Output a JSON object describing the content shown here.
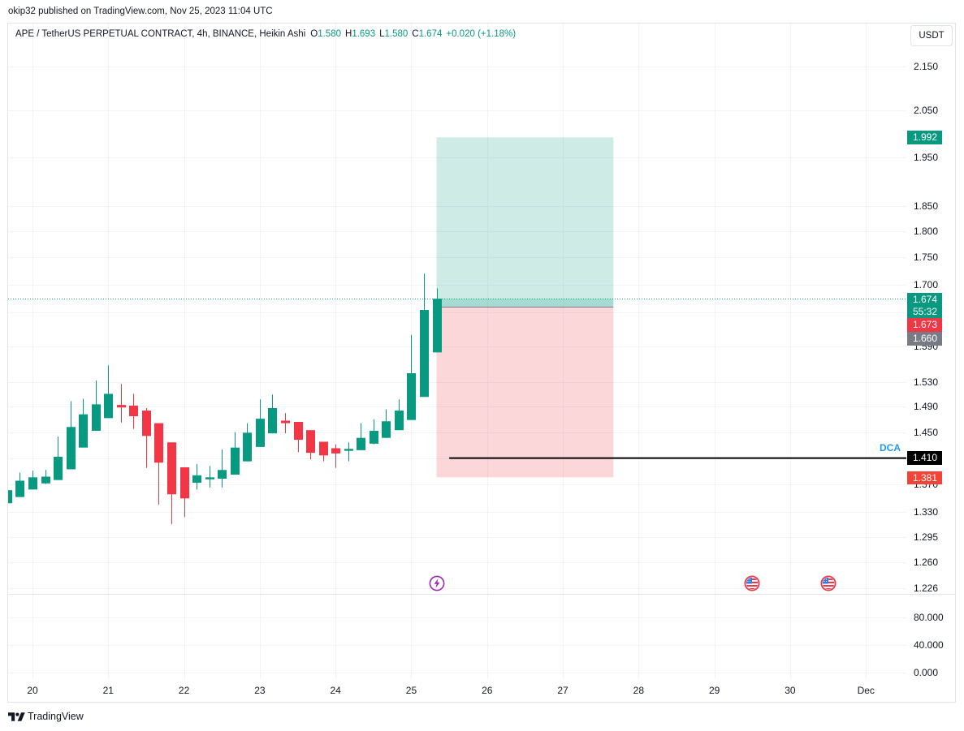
{
  "header": {
    "publish_info": "okip32 published on TradingView.com, Nov 25, 2023 11:04 UTC"
  },
  "legend": {
    "symbol": "APE / TetherUS PERPETUAL CONTRACT, 4h, BINANCE, Heikin Ashi",
    "open_label": "O",
    "open": "1.580",
    "high_label": "H",
    "high": "1.693",
    "low_label": "L",
    "low": "1.580",
    "close_label": "C",
    "close": "1.674",
    "change": "+0.020 (+1.18%)"
  },
  "price_axis": {
    "currency_button": "USDT",
    "labels": {
      "target": "1.992",
      "last_price": "1.674",
      "countdown": "55:32",
      "price_red": "1.673",
      "entry": "1.660",
      "dca": "1.410",
      "stop": "1.381"
    }
  },
  "dca_line": {
    "label": "DCA"
  },
  "lower_pane": {
    "ylim": [
      -10.59,
      112.94
    ],
    "ticks": [
      {
        "label": "80.000",
        "value": 80
      },
      {
        "label": "40.000",
        "value": 40
      },
      {
        "label": "0.000",
        "value": 0
      }
    ]
  },
  "events": [
    {
      "type": "lightning-event",
      "slot": 32
    },
    {
      "type": "us-flag-event",
      "slot": 57
    },
    {
      "type": "us-flag-event",
      "slot": 63
    }
  ],
  "footer": {
    "brand": "TradingView"
  },
  "colors": {
    "up": "#089981",
    "down": "#f23645",
    "grid": "#f0f3fa",
    "target_fill": "rgba(8,153,129,0.2)",
    "stop_fill": "rgba(242,54,69,0.2)",
    "entry_line": "#787b86",
    "dca_line": "#000000",
    "dca_text": "#2196f3",
    "event_lightning": "#9c27b0",
    "event_flag": "#f23645"
  },
  "chart_data": {
    "type": "candlestick",
    "title": "APE / TetherUS PERPETUAL CONTRACT, 4h, BINANCE, Heikin Ashi",
    "xlabel": "",
    "ylabel": "USDT",
    "y_scale": "log",
    "xlim": [
      -1.93,
      69.2
    ],
    "ylim": [
      1.218,
      2.252
    ],
    "grid": true,
    "x_labels": [
      {
        "slot": 0,
        "label": "20"
      },
      {
        "slot": 6,
        "label": "21"
      },
      {
        "slot": 12,
        "label": "22"
      },
      {
        "slot": 18,
        "label": "23"
      },
      {
        "slot": 24,
        "label": "24"
      },
      {
        "slot": 30,
        "label": "25"
      },
      {
        "slot": 36,
        "label": "26"
      },
      {
        "slot": 42,
        "label": "27"
      },
      {
        "slot": 48,
        "label": "28"
      },
      {
        "slot": 54,
        "label": "29"
      },
      {
        "slot": 60,
        "label": "30"
      },
      {
        "slot": 66,
        "label": "Dec"
      }
    ],
    "y_ticks": [
      {
        "value": 2.15,
        "label": "2.150"
      },
      {
        "value": 2.05,
        "label": "2.050"
      },
      {
        "value": 1.95,
        "label": "1.950"
      },
      {
        "value": 1.85,
        "label": "1.850"
      },
      {
        "value": 1.8,
        "label": "1.800"
      },
      {
        "value": 1.75,
        "label": "1.750"
      },
      {
        "value": 1.7,
        "label": "1.700"
      },
      {
        "value": 1.65,
        "label": "1.650"
      },
      {
        "value": 1.59,
        "label": "1.590"
      },
      {
        "value": 1.53,
        "label": "1.530"
      },
      {
        "value": 1.49,
        "label": "1.490"
      },
      {
        "value": 1.45,
        "label": "1.450"
      },
      {
        "value": 1.41,
        "label": "1.410"
      },
      {
        "value": 1.37,
        "label": "1.370"
      },
      {
        "value": 1.33,
        "label": "1.330"
      },
      {
        "value": 1.295,
        "label": "1.295"
      },
      {
        "value": 1.26,
        "label": "1.260"
      },
      {
        "value": 1.226,
        "label": "1.226"
      }
    ],
    "candle_fields": [
      "slot",
      "open",
      "high",
      "low",
      "close"
    ],
    "candles": [
      [
        -2,
        1.343,
        1.362,
        1.343,
        1.362
      ],
      [
        -1,
        1.352,
        1.388,
        1.352,
        1.376
      ],
      [
        0,
        1.363,
        1.391,
        1.363,
        1.381
      ],
      [
        1,
        1.372,
        1.392,
        1.371,
        1.382
      ],
      [
        2,
        1.377,
        1.443,
        1.377,
        1.412
      ],
      [
        3,
        1.393,
        1.499,
        1.393,
        1.458
      ],
      [
        4,
        1.426,
        1.503,
        1.426,
        1.478
      ],
      [
        5,
        1.452,
        1.533,
        1.452,
        1.494
      ],
      [
        6,
        1.472,
        1.558,
        1.472,
        1.511
      ],
      [
        7,
        1.493,
        1.527,
        1.465,
        1.489
      ],
      [
        8,
        1.492,
        1.511,
        1.455,
        1.475
      ],
      [
        9,
        1.484,
        1.488,
        1.395,
        1.444
      ],
      [
        10,
        1.464,
        1.464,
        1.341,
        1.403
      ],
      [
        11,
        1.434,
        1.434,
        1.313,
        1.356
      ],
      [
        12,
        1.396,
        1.396,
        1.323,
        1.35
      ],
      [
        13,
        1.373,
        1.401,
        1.363,
        1.384
      ],
      [
        14,
        1.378,
        1.398,
        1.366,
        1.381
      ],
      [
        15,
        1.379,
        1.423,
        1.366,
        1.392
      ],
      [
        16,
        1.385,
        1.45,
        1.385,
        1.426
      ],
      [
        17,
        1.405,
        1.464,
        1.405,
        1.449
      ],
      [
        18,
        1.427,
        1.502,
        1.427,
        1.471
      ],
      [
        19,
        1.448,
        1.51,
        1.448,
        1.488
      ],
      [
        20,
        1.468,
        1.48,
        1.448,
        1.464
      ],
      [
        21,
        1.466,
        1.466,
        1.419,
        1.438
      ],
      [
        22,
        1.453,
        1.453,
        1.408,
        1.418
      ],
      [
        23,
        1.435,
        1.435,
        1.405,
        1.414
      ],
      [
        24,
        1.425,
        1.431,
        1.395,
        1.417
      ],
      [
        25,
        1.421,
        1.434,
        1.405,
        1.424
      ],
      [
        26,
        1.422,
        1.464,
        1.422,
        1.441
      ],
      [
        27,
        1.432,
        1.47,
        1.431,
        1.452
      ],
      [
        28,
        1.441,
        1.486,
        1.441,
        1.467
      ],
      [
        29,
        1.453,
        1.502,
        1.453,
        1.484
      ],
      [
        30,
        1.469,
        1.61,
        1.469,
        1.545
      ],
      [
        31,
        1.506,
        1.72,
        1.506,
        1.654
      ],
      [
        32,
        1.58,
        1.693,
        1.58,
        1.674
      ]
    ],
    "current_price": 1.674,
    "position": {
      "type": "long",
      "entry": 1.66,
      "target": 1.992,
      "stop": 1.381,
      "start_slot": 32,
      "end_slot": 46
    },
    "horizontal_lines": [
      {
        "label": "DCA",
        "price": 1.41,
        "start_slot": 33
      }
    ],
    "legend_position": "top-left"
  }
}
